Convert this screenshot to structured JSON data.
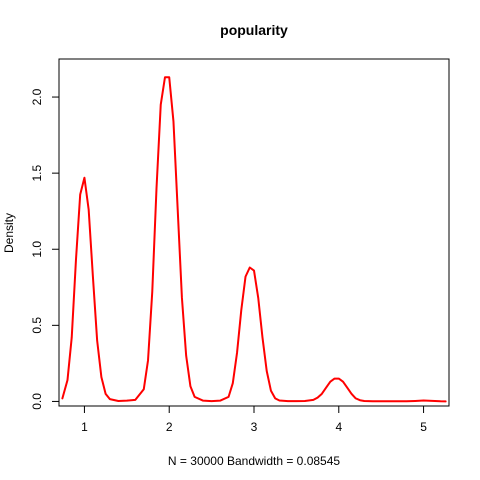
{
  "chart_data": {
    "type": "line",
    "title": "popularity",
    "xlabel": "N = 30000   Bandwidth = 0.08545",
    "ylabel": "Density",
    "xlim": [
      0.7,
      5.3
    ],
    "ylim": [
      -0.03,
      2.25
    ],
    "x_ticks": [
      1,
      2,
      3,
      4,
      5
    ],
    "y_ticks": [
      0.0,
      0.5,
      1.0,
      1.5,
      2.0
    ],
    "x_tick_labels": [
      "1",
      "2",
      "3",
      "4",
      "5"
    ],
    "y_tick_labels": [
      "0.0",
      "0.5",
      "1.0",
      "1.5",
      "2.0"
    ],
    "grid": false,
    "series": [
      {
        "color": "#ff0000",
        "x": [
          0.74,
          0.8,
          0.85,
          0.9,
          0.95,
          1.0,
          1.05,
          1.1,
          1.15,
          1.2,
          1.25,
          1.3,
          1.4,
          1.5,
          1.6,
          1.7,
          1.75,
          1.8,
          1.85,
          1.9,
          1.95,
          2.0,
          2.05,
          2.1,
          2.15,
          2.2,
          2.25,
          2.3,
          2.4,
          2.5,
          2.6,
          2.7,
          2.75,
          2.8,
          2.85,
          2.9,
          2.95,
          3.0,
          3.05,
          3.1,
          3.15,
          3.2,
          3.25,
          3.3,
          3.4,
          3.5,
          3.6,
          3.7,
          3.75,
          3.8,
          3.85,
          3.9,
          3.95,
          4.0,
          4.05,
          4.1,
          4.15,
          4.2,
          4.25,
          4.3,
          4.4,
          4.5,
          4.6,
          4.7,
          4.8,
          4.9,
          5.0,
          5.1,
          5.2,
          5.26
        ],
        "y": [
          0.02,
          0.14,
          0.42,
          0.93,
          1.36,
          1.47,
          1.26,
          0.82,
          0.4,
          0.16,
          0.05,
          0.015,
          0.003,
          0.005,
          0.01,
          0.08,
          0.27,
          0.72,
          1.4,
          1.95,
          2.13,
          2.13,
          1.84,
          1.26,
          0.68,
          0.3,
          0.1,
          0.03,
          0.005,
          0.002,
          0.005,
          0.03,
          0.12,
          0.32,
          0.6,
          0.82,
          0.88,
          0.86,
          0.68,
          0.42,
          0.2,
          0.07,
          0.02,
          0.006,
          0.002,
          0.002,
          0.003,
          0.01,
          0.025,
          0.05,
          0.09,
          0.13,
          0.15,
          0.15,
          0.13,
          0.09,
          0.05,
          0.02,
          0.008,
          0.003,
          0.001,
          0.001,
          0.001,
          0.001,
          0.001,
          0.003,
          0.006,
          0.004,
          0.001,
          0.0
        ]
      }
    ]
  }
}
